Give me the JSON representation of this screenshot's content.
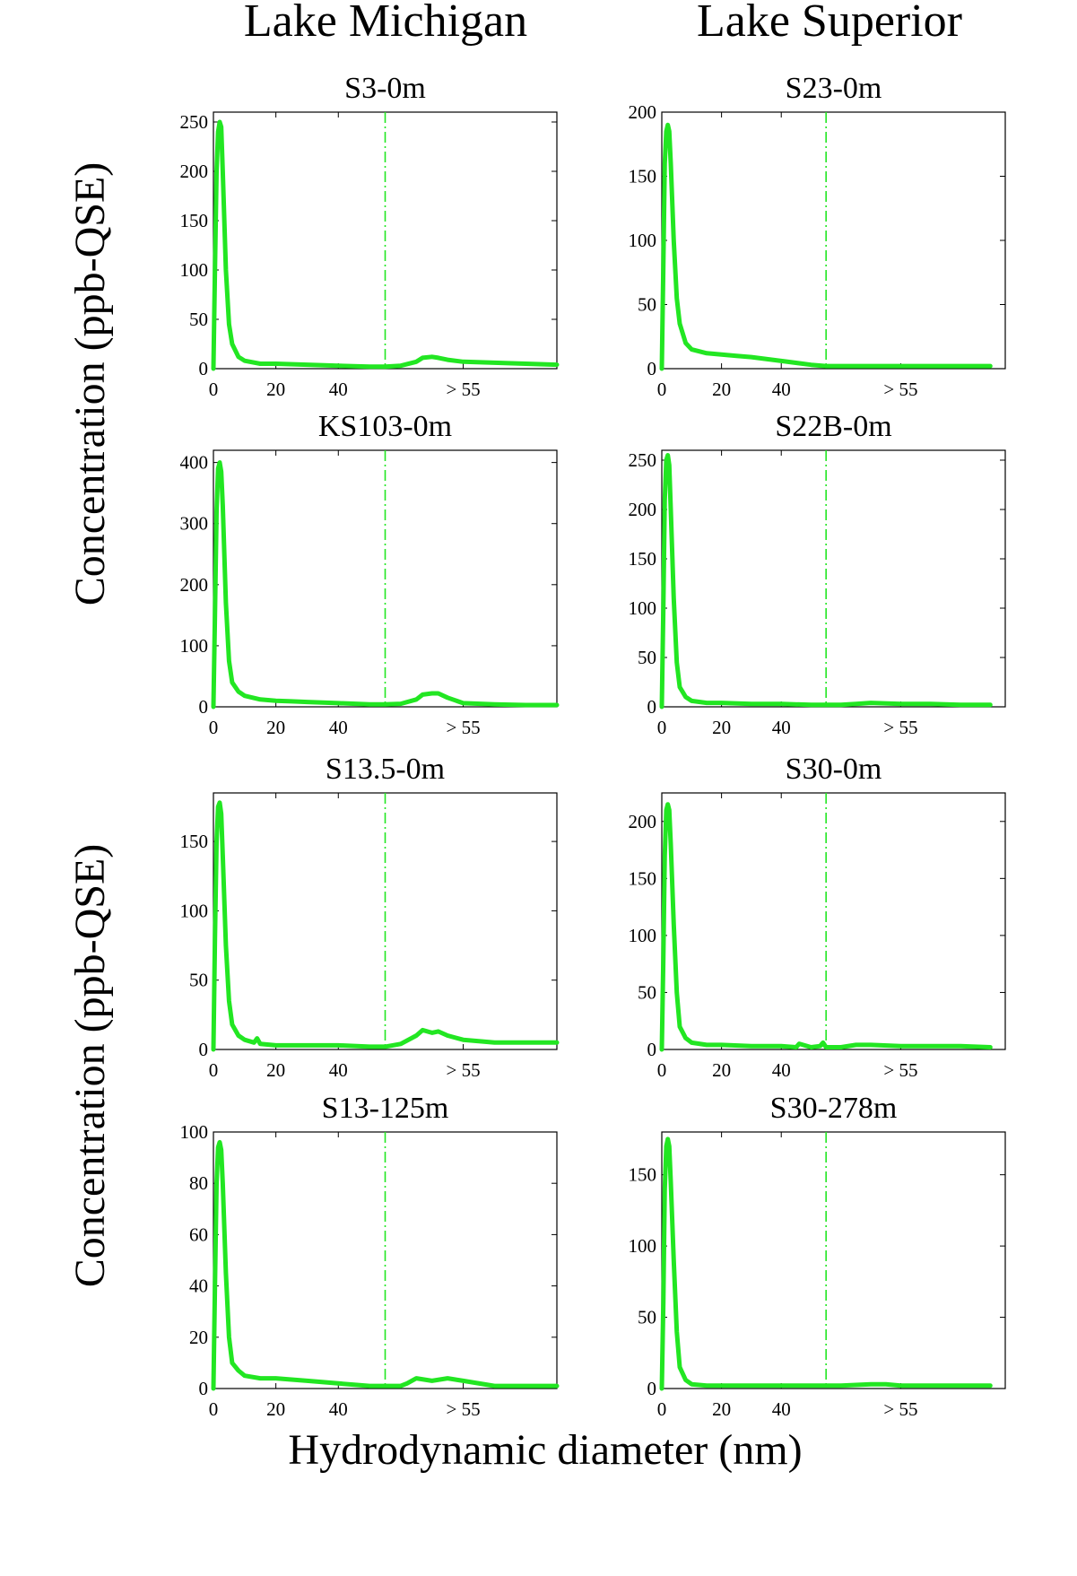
{
  "columns": [
    {
      "title": "Lake Michigan"
    },
    {
      "title": "Lake Superior"
    }
  ],
  "ylabels": [
    "Concentration (ppb-QSE)",
    "Concentration (ppb-QSE)"
  ],
  "xlabel": "Hydrodynamic diameter (nm)",
  "colors": {
    "series": "#22e622",
    "axes": "#000000",
    "background": "#ffffff"
  },
  "chart_data": [
    {
      "type": "line",
      "title": "S3-0m",
      "lake": "Lake Michigan",
      "xlim": [
        0,
        110
      ],
      "ylim": [
        0,
        260
      ],
      "xticks": [
        0,
        20,
        40
      ],
      "xticklabels": [
        "0",
        "20",
        "40"
      ],
      "extra_tick_label": "> 55",
      "extra_tick_x": 80,
      "yticks": [
        0,
        50,
        100,
        150,
        200,
        250
      ],
      "cutoff_x": 55,
      "grid": false,
      "x": [
        0,
        0.5,
        1,
        1.5,
        2,
        2.5,
        3,
        4,
        5,
        6,
        8,
        10,
        15,
        20,
        30,
        40,
        50,
        55,
        60,
        65,
        67,
        70,
        72,
        75,
        80,
        90,
        100,
        110
      ],
      "y": [
        0,
        100,
        200,
        240,
        250,
        245,
        200,
        100,
        45,
        25,
        12,
        8,
        5,
        5,
        4,
        3,
        2,
        2,
        3,
        7,
        11,
        12,
        11,
        9,
        7,
        6,
        5,
        4
      ]
    },
    {
      "type": "line",
      "title": "S23-0m",
      "lake": "Lake Superior",
      "xlim": [
        0,
        115
      ],
      "ylim": [
        0,
        200
      ],
      "xticks": [
        0,
        20,
        40
      ],
      "xticklabels": [
        "0",
        "20",
        "40"
      ],
      "extra_tick_label": "> 55",
      "extra_tick_x": 80,
      "yticks": [
        0,
        50,
        100,
        150,
        200
      ],
      "cutoff_x": 55,
      "grid": false,
      "x": [
        0,
        0.5,
        1,
        1.5,
        2,
        2.5,
        3,
        4,
        5,
        6,
        8,
        10,
        15,
        20,
        25,
        30,
        40,
        50,
        55,
        60,
        70,
        80,
        90,
        100,
        110
      ],
      "y": [
        0,
        80,
        160,
        185,
        190,
        185,
        160,
        100,
        55,
        35,
        20,
        15,
        12,
        11,
        10,
        9,
        6,
        3,
        2,
        2,
        2,
        2,
        2,
        2,
        2
      ]
    },
    {
      "type": "line",
      "title": "KS103-0m",
      "lake": "Lake Michigan",
      "xlim": [
        0,
        110
      ],
      "ylim": [
        0,
        420
      ],
      "xticks": [
        0,
        20,
        40
      ],
      "xticklabels": [
        "0",
        "20",
        "40"
      ],
      "extra_tick_label": "> 55",
      "extra_tick_x": 80,
      "yticks": [
        0,
        100,
        200,
        300,
        400
      ],
      "cutoff_x": 55,
      "grid": false,
      "x": [
        0,
        0.5,
        1,
        1.5,
        2,
        2.5,
        3,
        4,
        5,
        6,
        8,
        10,
        15,
        20,
        25,
        30,
        40,
        50,
        55,
        60,
        65,
        67,
        70,
        72,
        75,
        80,
        90,
        100,
        110
      ],
      "y": [
        0,
        150,
        320,
        390,
        400,
        385,
        330,
        170,
        75,
        40,
        25,
        18,
        12,
        10,
        9,
        8,
        6,
        4,
        4,
        5,
        12,
        20,
        22,
        22,
        15,
        6,
        4,
        3,
        3
      ]
    },
    {
      "type": "line",
      "title": "S22B-0m",
      "lake": "Lake Superior",
      "xlim": [
        0,
        115
      ],
      "ylim": [
        0,
        260
      ],
      "xticks": [
        0,
        20,
        40
      ],
      "xticklabels": [
        "0",
        "20",
        "40"
      ],
      "extra_tick_label": "> 55",
      "extra_tick_x": 80,
      "yticks": [
        0,
        50,
        100,
        150,
        200,
        250
      ],
      "cutoff_x": 55,
      "grid": false,
      "x": [
        0,
        0.5,
        1,
        1.5,
        2,
        2.5,
        3,
        4,
        5,
        6,
        8,
        10,
        15,
        20,
        30,
        40,
        50,
        55,
        60,
        65,
        70,
        80,
        90,
        100,
        110
      ],
      "y": [
        0,
        100,
        210,
        250,
        255,
        245,
        200,
        110,
        45,
        20,
        10,
        6,
        4,
        4,
        3,
        3,
        2,
        2,
        2,
        3,
        4,
        3,
        3,
        2,
        2
      ]
    },
    {
      "type": "line",
      "title": "S13.5-0m",
      "lake": "Lake Michigan",
      "xlim": [
        0,
        110
      ],
      "ylim": [
        0,
        185
      ],
      "xticks": [
        0,
        20,
        40
      ],
      "xticklabels": [
        "0",
        "20",
        "40"
      ],
      "extra_tick_label": "> 55",
      "extra_tick_x": 80,
      "yticks": [
        0,
        50,
        100,
        150
      ],
      "cutoff_x": 55,
      "grid": false,
      "x": [
        0,
        0.5,
        1,
        1.5,
        2,
        2.5,
        3,
        4,
        5,
        6,
        8,
        10,
        13,
        14,
        15,
        20,
        30,
        40,
        50,
        55,
        60,
        65,
        67,
        70,
        72,
        75,
        80,
        90,
        100,
        110
      ],
      "y": [
        0,
        80,
        150,
        175,
        178,
        170,
        140,
        75,
        35,
        18,
        10,
        7,
        5,
        8,
        4,
        3,
        3,
        3,
        2,
        2,
        4,
        10,
        14,
        12,
        13,
        10,
        7,
        5,
        5,
        5
      ]
    },
    {
      "type": "line",
      "title": "S30-0m",
      "lake": "Lake Superior",
      "xlim": [
        0,
        115
      ],
      "ylim": [
        0,
        225
      ],
      "xticks": [
        0,
        20,
        40
      ],
      "xticklabels": [
        "0",
        "20",
        "40"
      ],
      "extra_tick_label": "> 55",
      "extra_tick_x": 80,
      "yticks": [
        0,
        50,
        100,
        150,
        200
      ],
      "cutoff_x": 55,
      "grid": false,
      "x": [
        0,
        0.5,
        1,
        1.5,
        2,
        2.5,
        3,
        4,
        5,
        6,
        8,
        10,
        15,
        20,
        30,
        40,
        45,
        46,
        50,
        53,
        54,
        55,
        60,
        65,
        70,
        80,
        90,
        100,
        110
      ],
      "y": [
        0,
        80,
        170,
        210,
        215,
        210,
        180,
        110,
        50,
        20,
        10,
        6,
        4,
        4,
        3,
        3,
        2,
        5,
        2,
        3,
        6,
        2,
        2,
        4,
        4,
        3,
        3,
        3,
        2
      ]
    },
    {
      "type": "line",
      "title": "S13-125m",
      "lake": "Lake Michigan",
      "xlim": [
        0,
        110
      ],
      "ylim": [
        0,
        100
      ],
      "xticks": [
        0,
        20,
        40
      ],
      "xticklabels": [
        "0",
        "20",
        "40"
      ],
      "extra_tick_label": "> 55",
      "extra_tick_x": 80,
      "yticks": [
        0,
        20,
        40,
        60,
        80,
        100
      ],
      "cutoff_x": 55,
      "grid": false,
      "x": [
        0,
        0.5,
        1,
        1.5,
        2,
        2.5,
        3,
        4,
        5,
        6,
        8,
        10,
        15,
        20,
        30,
        40,
        50,
        55,
        60,
        62,
        65,
        70,
        75,
        80,
        90,
        100,
        110
      ],
      "y": [
        0,
        40,
        80,
        94,
        96,
        93,
        80,
        45,
        20,
        10,
        7,
        5,
        4,
        4,
        3,
        2,
        1,
        1,
        1,
        2,
        4,
        3,
        4,
        3,
        1,
        1,
        1
      ]
    },
    {
      "type": "line",
      "title": "S30-278m",
      "lake": "Lake Superior",
      "xlim": [
        0,
        115
      ],
      "ylim": [
        0,
        180
      ],
      "xticks": [
        0,
        20,
        40
      ],
      "xticklabels": [
        "0",
        "20",
        "40"
      ],
      "extra_tick_label": "> 55",
      "extra_tick_x": 80,
      "yticks": [
        0,
        50,
        100,
        150
      ],
      "cutoff_x": 55,
      "grid": false,
      "x": [
        0,
        0.5,
        1,
        1.5,
        2,
        2.5,
        3,
        4,
        5,
        6,
        8,
        10,
        15,
        20,
        30,
        40,
        50,
        55,
        60,
        70,
        75,
        80,
        90,
        100,
        110
      ],
      "y": [
        0,
        60,
        140,
        170,
        175,
        170,
        145,
        90,
        40,
        15,
        6,
        3,
        2,
        2,
        2,
        2,
        2,
        2,
        2,
        3,
        3,
        2,
        2,
        2,
        2
      ]
    }
  ]
}
